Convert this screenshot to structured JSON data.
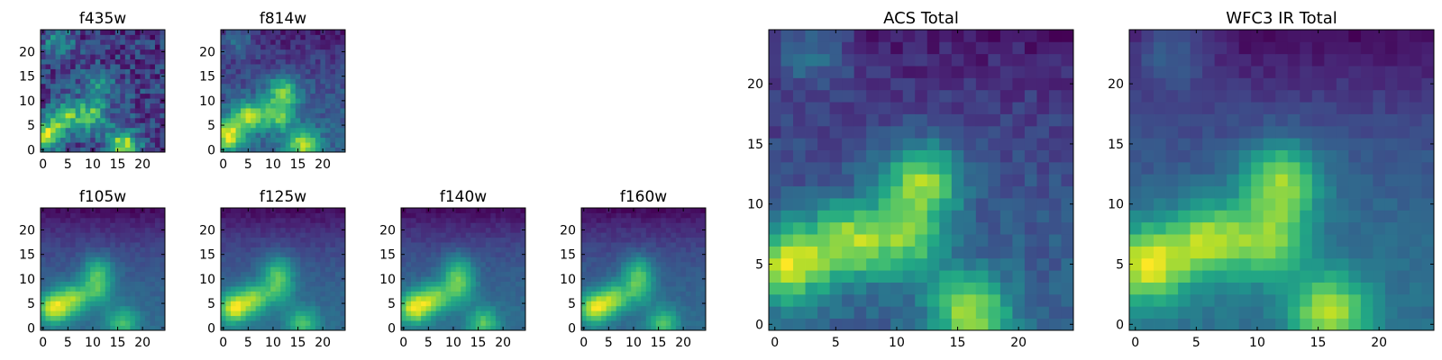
{
  "chart_data": [
    {
      "type": "heatmap",
      "title": "f435w",
      "colormap": "viridis",
      "grid": false,
      "xlim": [
        -0.5,
        24.5
      ],
      "ylim": [
        -0.5,
        24.5
      ],
      "xticks": [
        "0",
        "5",
        "10",
        "15",
        "20"
      ],
      "yticks": [
        "0",
        "5",
        "10",
        "15",
        "20"
      ],
      "blobs": [
        {
          "x": 1,
          "y": 3,
          "amp": 0.7
        },
        {
          "x": 5,
          "y": 7,
          "amp": 0.5
        },
        {
          "x": 10,
          "y": 7,
          "amp": 0.45
        },
        {
          "x": 11,
          "y": 13,
          "amp": 0.35
        },
        {
          "x": 16,
          "y": 1,
          "amp": 0.7
        },
        {
          "x": 3,
          "y": 22,
          "amp": 0.35
        }
      ],
      "top_fade": 0.05,
      "noise": 0.35
    },
    {
      "type": "heatmap",
      "title": "f814w",
      "colormap": "viridis",
      "grid": false,
      "xlim": [
        -0.5,
        24.5
      ],
      "ylim": [
        -0.5,
        24.5
      ],
      "xticks": [
        "0",
        "5",
        "10",
        "15",
        "20"
      ],
      "yticks": [
        "0",
        "5",
        "10",
        "15",
        "20"
      ],
      "blobs": [
        {
          "x": 1,
          "y": 3,
          "amp": 0.75
        },
        {
          "x": 5,
          "y": 7,
          "amp": 0.6
        },
        {
          "x": 11,
          "y": 7,
          "amp": 0.5
        },
        {
          "x": 12,
          "y": 12,
          "amp": 0.55
        },
        {
          "x": 16,
          "y": 1,
          "amp": 0.65
        },
        {
          "x": 3,
          "y": 23,
          "amp": 0.3
        }
      ],
      "top_fade": 0.25,
      "noise": 0.2
    },
    {
      "type": "heatmap",
      "title": "f105w",
      "colormap": "viridis",
      "grid": false,
      "xlim": [
        -0.5,
        24.5
      ],
      "ylim": [
        -0.5,
        24.5
      ],
      "xticks": [
        "0",
        "5",
        "10",
        "15",
        "20"
      ],
      "yticks": [
        "0",
        "5",
        "10",
        "15",
        "20"
      ],
      "blobs": [
        {
          "x": 2,
          "y": 4,
          "amp": 0.85
        },
        {
          "x": 6,
          "y": 6,
          "amp": 0.65
        },
        {
          "x": 11,
          "y": 8,
          "amp": 0.5
        },
        {
          "x": 11,
          "y": 12,
          "amp": 0.5
        },
        {
          "x": 16,
          "y": 1,
          "amp": 0.55
        }
      ],
      "top_fade": 0.45,
      "noise": 0.1
    },
    {
      "type": "heatmap",
      "title": "f125w",
      "colormap": "viridis",
      "grid": false,
      "xlim": [
        -0.5,
        24.5
      ],
      "ylim": [
        -0.5,
        24.5
      ],
      "xticks": [
        "0",
        "5",
        "10",
        "15",
        "20"
      ],
      "yticks": [
        "0",
        "5",
        "10",
        "15",
        "20"
      ],
      "blobs": [
        {
          "x": 2,
          "y": 4,
          "amp": 0.85
        },
        {
          "x": 6,
          "y": 6,
          "amp": 0.65
        },
        {
          "x": 11,
          "y": 8,
          "amp": 0.5
        },
        {
          "x": 11,
          "y": 12,
          "amp": 0.5
        },
        {
          "x": 16,
          "y": 1,
          "amp": 0.55
        }
      ],
      "top_fade": 0.45,
      "noise": 0.1
    },
    {
      "type": "heatmap",
      "title": "f140w",
      "colormap": "viridis",
      "grid": false,
      "xlim": [
        -0.5,
        24.5
      ],
      "ylim": [
        -0.5,
        24.5
      ],
      "xticks": [
        "0",
        "5",
        "10",
        "15",
        "20"
      ],
      "yticks": [
        "0",
        "5",
        "10",
        "15",
        "20"
      ],
      "blobs": [
        {
          "x": 2,
          "y": 4,
          "amp": 0.85
        },
        {
          "x": 6,
          "y": 6,
          "amp": 0.65
        },
        {
          "x": 11,
          "y": 8,
          "amp": 0.5
        },
        {
          "x": 11,
          "y": 12,
          "amp": 0.5
        },
        {
          "x": 16,
          "y": 1,
          "amp": 0.55
        }
      ],
      "top_fade": 0.45,
      "noise": 0.1
    },
    {
      "type": "heatmap",
      "title": "f160w",
      "colormap": "viridis",
      "grid": false,
      "xlim": [
        -0.5,
        24.5
      ],
      "ylim": [
        -0.5,
        24.5
      ],
      "xticks": [
        "0",
        "5",
        "10",
        "15",
        "20"
      ],
      "yticks": [
        "0",
        "5",
        "10",
        "15",
        "20"
      ],
      "blobs": [
        {
          "x": 2,
          "y": 4,
          "amp": 0.85
        },
        {
          "x": 6,
          "y": 6,
          "amp": 0.65
        },
        {
          "x": 11,
          "y": 8,
          "amp": 0.5
        },
        {
          "x": 11,
          "y": 12,
          "amp": 0.5
        },
        {
          "x": 16,
          "y": 1,
          "amp": 0.55
        }
      ],
      "top_fade": 0.45,
      "noise": 0.1
    },
    {
      "type": "heatmap",
      "title": "ACS Total",
      "colormap": "viridis",
      "grid": false,
      "xlim": [
        -0.5,
        24.5
      ],
      "ylim": [
        -0.5,
        24.5
      ],
      "xticks": [
        "0",
        "5",
        "10",
        "15",
        "20"
      ],
      "yticks": [
        "0",
        "5",
        "10",
        "15",
        "20"
      ],
      "blobs": [
        {
          "x": 1,
          "y": 5,
          "amp": 0.8
        },
        {
          "x": 6,
          "y": 7,
          "amp": 0.7
        },
        {
          "x": 11,
          "y": 7,
          "amp": 0.55
        },
        {
          "x": 12,
          "y": 12,
          "amp": 0.75
        },
        {
          "x": 16,
          "y": 1,
          "amp": 0.75
        },
        {
          "x": 3,
          "y": 23,
          "amp": 0.35
        }
      ],
      "top_fade": 0.3,
      "noise": 0.18
    },
    {
      "type": "heatmap",
      "title": "WFC3 IR Total",
      "colormap": "viridis",
      "grid": false,
      "xlim": [
        -0.5,
        24.5
      ],
      "ylim": [
        -0.5,
        24.5
      ],
      "xticks": [
        "0",
        "5",
        "10",
        "15",
        "20"
      ],
      "yticks": [
        "0",
        "5",
        "10",
        "15",
        "20"
      ],
      "blobs": [
        {
          "x": 1,
          "y": 5,
          "amp": 0.8
        },
        {
          "x": 6,
          "y": 7,
          "amp": 0.65
        },
        {
          "x": 11,
          "y": 7,
          "amp": 0.55
        },
        {
          "x": 12,
          "y": 12,
          "amp": 0.7
        },
        {
          "x": 16,
          "y": 1,
          "amp": 0.7
        },
        {
          "x": 3,
          "y": 23,
          "amp": 0.3
        }
      ],
      "top_fade": 0.45,
      "noise": 0.1
    }
  ]
}
